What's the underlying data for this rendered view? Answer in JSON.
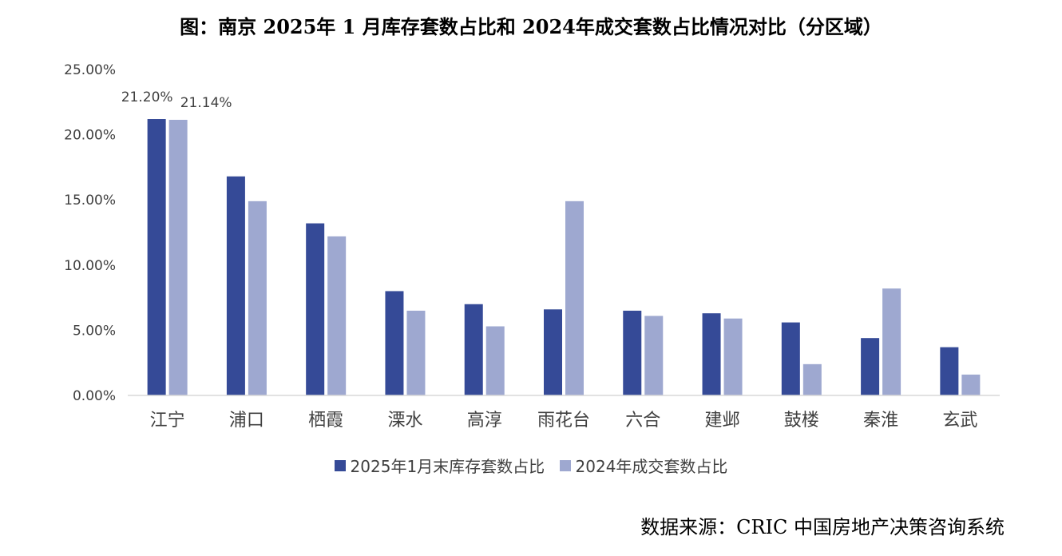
{
  "title": "图：南京 2025年 1 月库存套数占比和 2024年成交套数占比情况对比（分区域）",
  "source": "数据来源：CRIC 中国房地产决策咨询系统",
  "colors": {
    "series1": "#354a97",
    "series2": "#9ea8d0",
    "axis": "#d9d9d9",
    "text": "#404040"
  },
  "legend": [
    {
      "label": "2025年1月末库存套数占比"
    },
    {
      "label": "2024年成交套数占比"
    }
  ],
  "chart_data": {
    "type": "bar",
    "title": "图：南京 2025年 1 月库存套数占比和 2024年成交套数占比情况对比（分区域）",
    "xlabel": "",
    "ylabel": "",
    "ylim": [
      0,
      25
    ],
    "yticks": [
      "0.00%",
      "5.00%",
      "10.00%",
      "15.00%",
      "20.00%",
      "25.00%"
    ],
    "grid": false,
    "legend_position": "bottom",
    "categories": [
      "江宁",
      "浦口",
      "栖霞",
      "溧水",
      "高淳",
      "雨花台",
      "六合",
      "建邺",
      "鼓楼",
      "秦淮",
      "玄武"
    ],
    "series": [
      {
        "name": "2025年1月末库存套数占比",
        "values": [
          21.2,
          16.8,
          13.2,
          8.0,
          7.0,
          6.6,
          6.5,
          6.3,
          5.6,
          4.4,
          3.7
        ]
      },
      {
        "name": "2024年成交套数占比",
        "values": [
          21.14,
          14.9,
          12.2,
          6.5,
          5.3,
          14.9,
          6.1,
          5.9,
          2.4,
          8.2,
          1.6
        ]
      }
    ],
    "data_labels": [
      {
        "series": 0,
        "index": 0,
        "text": "21.20%"
      },
      {
        "series": 1,
        "index": 0,
        "text": "21.14%"
      }
    ]
  }
}
